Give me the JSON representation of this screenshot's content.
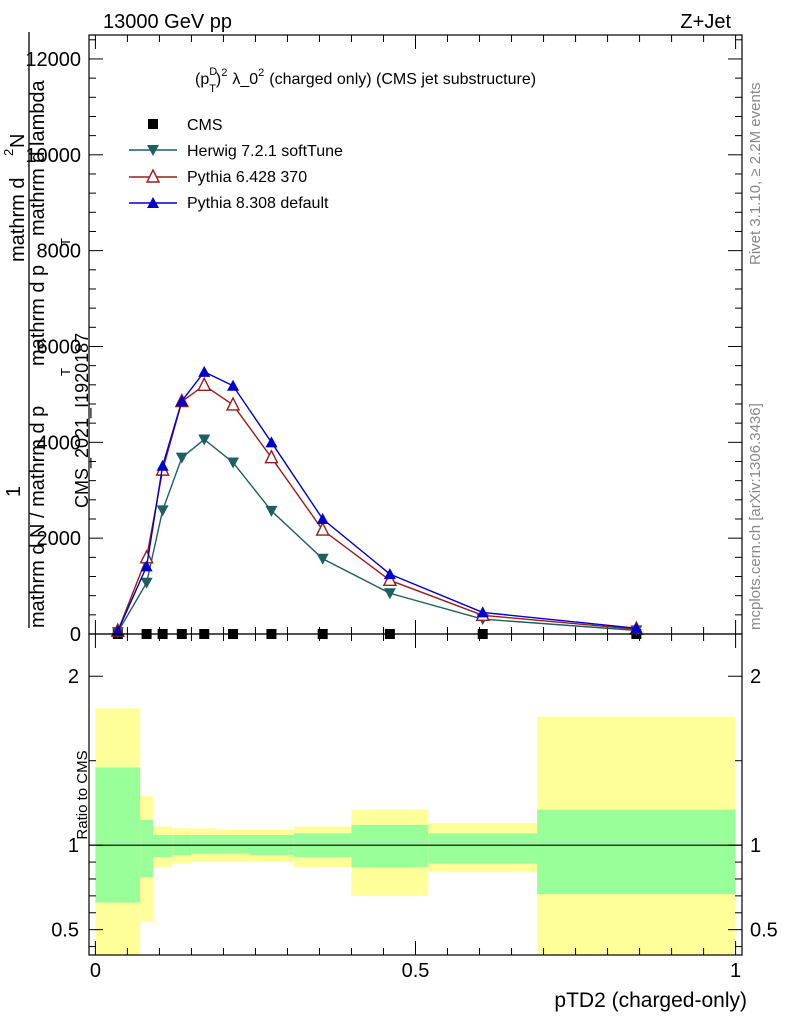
{
  "header": {
    "left": "13000 GeV pp",
    "right": "Z+Jet"
  },
  "side_labels": {
    "rivet": "Rivet 3.1.10, ≥ 2.2M events",
    "mcplots": "mcplots.cern.ch [arXiv:1306.3436]"
  },
  "watermark": "CMS_2021_I1920187",
  "chart_data": [
    {
      "type": "line",
      "title": "(p_T^D)^2 λ_0^2 (charged only) (CMS jet substructure)",
      "title_parts": {
        "p": "(p",
        "sup_d": "D",
        "sub_t": "T",
        "close": ")",
        "sup_2": "2",
        "main": "λ_0",
        "sup_3": "2",
        "rest": "(charged only) (CMS jet substructure)"
      },
      "ylabel_parts": {
        "one": "1",
        "numerator": "mathrm d^2N",
        "num_sup": "2",
        "num_a": "mathrm d",
        "num_b": "N",
        "denominator": "mathrm d N / mathrm d p_T mathrm d p_T mathrm d lambda",
        "den_1": "mathrm d N / mathrm d p",
        "den_2": "mathrm d p",
        "den_3": "mathrm d lambda",
        "sub_t1": "T",
        "sub_t2": "T"
      },
      "ylim": [
        0,
        12500
      ],
      "y_ticks": [
        0,
        2000,
        4000,
        6000,
        8000,
        10000,
        12000
      ],
      "y_tick_labels": [
        "0",
        "2000",
        "4000",
        "6000",
        "8000",
        "10000",
        "12000"
      ],
      "xlim": [
        -0.01,
        1.01
      ],
      "legend_position": "top-left",
      "legend": [
        "CMS",
        "Herwig 7.2.1 softTune",
        "Pythia 6.428 370",
        "Pythia 8.308 default"
      ],
      "series": [
        {
          "name": "CMS",
          "marker": "square",
          "color": "#000000",
          "x": [
            0.035,
            0.08,
            0.105,
            0.135,
            0.17,
            0.215,
            0.275,
            0.355,
            0.46,
            0.605,
            0.845
          ],
          "y": [
            0,
            0,
            0,
            0,
            0,
            0,
            0,
            0,
            0,
            0,
            0
          ]
        },
        {
          "name": "Herwig 7.2.1 softTune",
          "marker": "triangle-down",
          "color": "#1f5f5f",
          "x": [
            0.035,
            0.08,
            0.105,
            0.135,
            0.17,
            0.215,
            0.275,
            0.355,
            0.46,
            0.605,
            0.845
          ],
          "y": [
            40,
            1070,
            2580,
            3680,
            4060,
            3580,
            2570,
            1570,
            850,
            310,
            75
          ]
        },
        {
          "name": "Pythia 6.428 370",
          "marker": "triangle-open",
          "color": "#9b1b1b",
          "x": [
            0.035,
            0.08,
            0.105,
            0.135,
            0.17,
            0.215,
            0.275,
            0.355,
            0.46,
            0.605,
            0.845
          ],
          "y": [
            60,
            1590,
            3420,
            4850,
            5190,
            4780,
            3680,
            2170,
            1120,
            390,
            100
          ]
        },
        {
          "name": "Pythia 8.308 default",
          "marker": "triangle-up",
          "color": "#0000cc",
          "x": [
            0.035,
            0.08,
            0.105,
            0.135,
            0.17,
            0.215,
            0.275,
            0.355,
            0.46,
            0.605,
            0.845
          ],
          "y": [
            60,
            1410,
            3510,
            4860,
            5470,
            5180,
            4000,
            2400,
            1250,
            450,
            120
          ]
        }
      ]
    },
    {
      "type": "area",
      "ylabel": "Ratio to CMS",
      "xlabel": "pTD2 (charged-only)",
      "xlim": [
        -0.01,
        1.01
      ],
      "ylim": [
        0.35,
        2.25
      ],
      "x_ticks": [
        0,
        0.5,
        1
      ],
      "x_tick_labels": [
        "0",
        "0.5",
        "1"
      ],
      "y_ticks": [
        0.5,
        1,
        2
      ],
      "y_tick_labels": [
        "0.5",
        "1",
        "2"
      ],
      "reference_line": 1,
      "bins": [
        {
          "lo": 0.0,
          "hi": 0.07,
          "inner": [
            0.66,
            1.46
          ],
          "outer": [
            0.35,
            1.81
          ]
        },
        {
          "lo": 0.07,
          "hi": 0.09,
          "inner": [
            0.81,
            1.15
          ],
          "outer": [
            0.55,
            1.29
          ]
        },
        {
          "lo": 0.09,
          "hi": 0.12,
          "inner": [
            0.93,
            1.06
          ],
          "outer": [
            0.87,
            1.11
          ]
        },
        {
          "lo": 0.12,
          "hi": 0.15,
          "inner": [
            0.94,
            1.06
          ],
          "outer": [
            0.89,
            1.1
          ]
        },
        {
          "lo": 0.15,
          "hi": 0.19,
          "inner": [
            0.95,
            1.06
          ],
          "outer": [
            0.9,
            1.1
          ]
        },
        {
          "lo": 0.19,
          "hi": 0.24,
          "inner": [
            0.95,
            1.06
          ],
          "outer": [
            0.9,
            1.09
          ]
        },
        {
          "lo": 0.24,
          "hi": 0.31,
          "inner": [
            0.94,
            1.06
          ],
          "outer": [
            0.9,
            1.09
          ]
        },
        {
          "lo": 0.31,
          "hi": 0.4,
          "inner": [
            0.93,
            1.07
          ],
          "outer": [
            0.87,
            1.11
          ]
        },
        {
          "lo": 0.4,
          "hi": 0.52,
          "inner": [
            0.87,
            1.12
          ],
          "outer": [
            0.7,
            1.21
          ]
        },
        {
          "lo": 0.52,
          "hi": 0.69,
          "inner": [
            0.89,
            1.07
          ],
          "outer": [
            0.84,
            1.13
          ]
        },
        {
          "lo": 0.69,
          "hi": 1.0,
          "inner": [
            0.71,
            1.21
          ],
          "outer": [
            0.35,
            1.76
          ]
        }
      ]
    }
  ]
}
